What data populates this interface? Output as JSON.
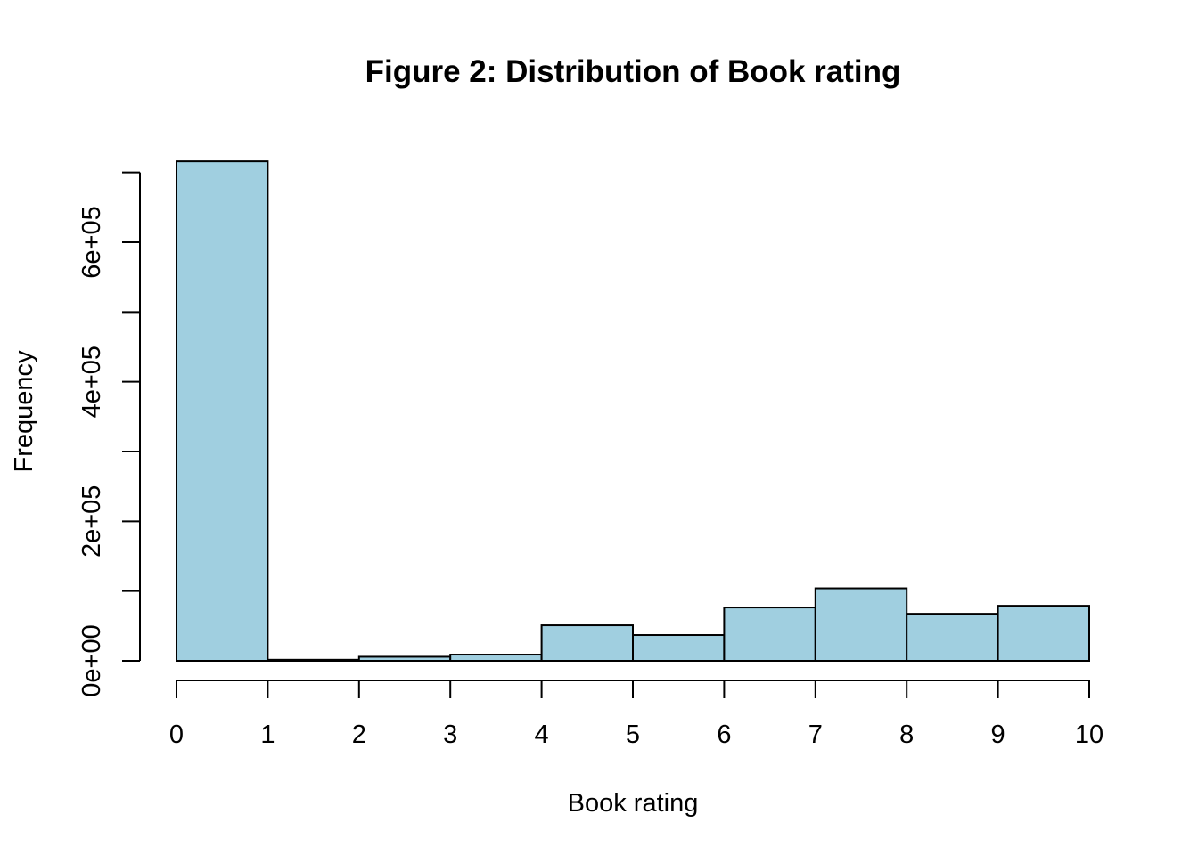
{
  "chart_data": {
    "type": "bar",
    "title": "Figure 2: Distribution of Book rating",
    "xlabel": "Book rating",
    "ylabel": "Frequency",
    "bins": [
      [
        0,
        1
      ],
      [
        1,
        2
      ],
      [
        2,
        3
      ],
      [
        3,
        4
      ],
      [
        4,
        5
      ],
      [
        5,
        6
      ],
      [
        6,
        7
      ],
      [
        7,
        8
      ],
      [
        8,
        9
      ],
      [
        9,
        10
      ]
    ],
    "values": [
      716000,
      1500,
      5800,
      8900,
      51000,
      37000,
      76500,
      104000,
      67500,
      79000
    ],
    "xlim": [
      0,
      10
    ],
    "ylim": [
      0,
      700000
    ],
    "x_ticks": [
      0,
      1,
      2,
      3,
      4,
      5,
      6,
      7,
      8,
      9,
      10
    ],
    "x_tick_labels": [
      "0",
      "1",
      "2",
      "3",
      "4",
      "5",
      "6",
      "7",
      "8",
      "9",
      "10"
    ],
    "y_ticks": [
      0,
      100000,
      200000,
      300000,
      400000,
      500000,
      600000,
      700000
    ],
    "y_tick_labels": [
      "0e+00",
      "",
      "2e+05",
      "",
      "4e+05",
      "",
      "6e+05",
      ""
    ],
    "bar_color": "#a0cfe0",
    "grid": false
  }
}
